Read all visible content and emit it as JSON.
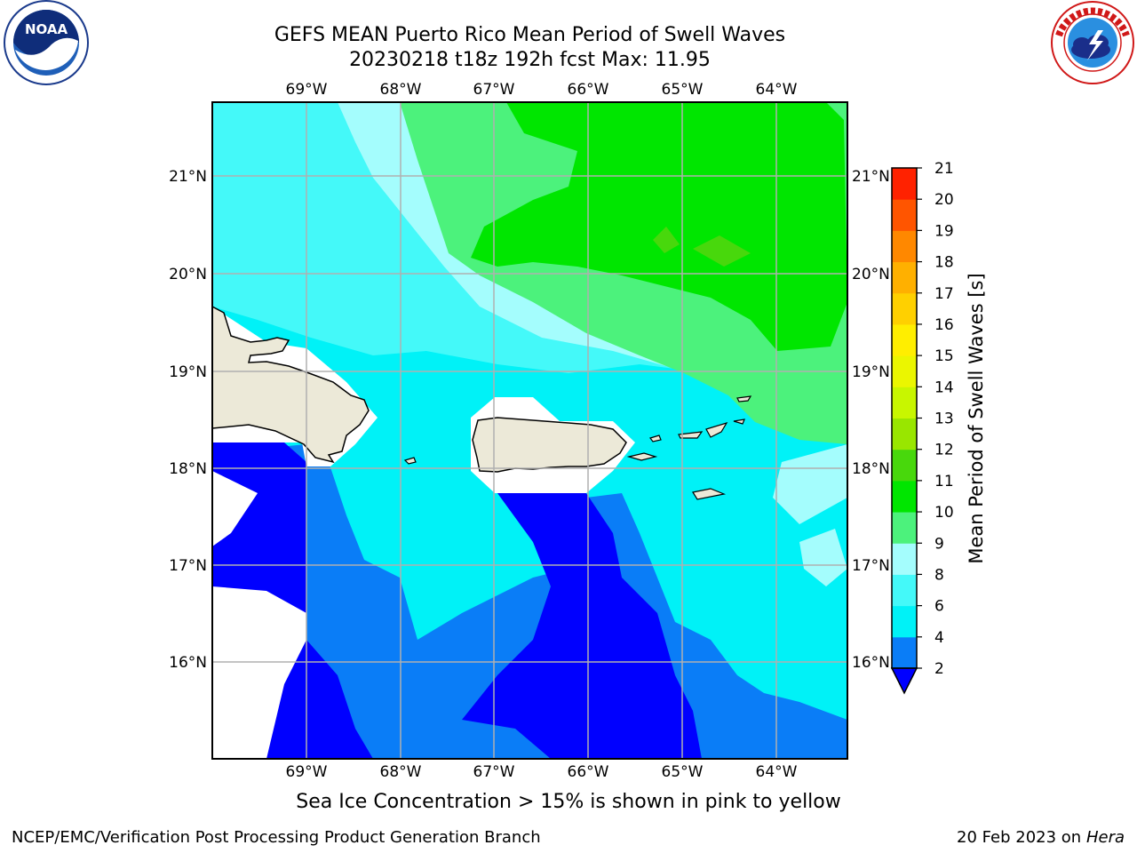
{
  "title": {
    "line1": "GEFS MEAN Puerto Rico Mean Period of Swell Waves",
    "line2": "20230218 t18z 192h fcst   Max: 11.95"
  },
  "logos": {
    "left": "noaa-logo",
    "right": "nws-logo"
  },
  "axes": {
    "lon_labels": [
      "69°W",
      "68°W",
      "67°W",
      "66°W",
      "65°W",
      "64°W"
    ],
    "lat_labels": [
      "21°N",
      "20°N",
      "19°N",
      "18°N",
      "17°N",
      "16°N"
    ]
  },
  "colorbar": {
    "label": "Mean Period of Swell Waves [s]",
    "ticks": [
      "2",
      "4",
      "6",
      "8",
      "9",
      "10",
      "11",
      "12",
      "13",
      "14",
      "15",
      "16",
      "17",
      "18",
      "19",
      "20",
      "21"
    ],
    "colors": [
      "#0a7df7",
      "#00f2f7",
      "#44f9f9",
      "#a4fdfd",
      "#4cf27c",
      "#00e600",
      "#48d80c",
      "#99e600",
      "#c8f600",
      "#ebf600",
      "#ffee00",
      "#ffd000",
      "#ffb000",
      "#ff8800",
      "#ff5500",
      "#ff2200"
    ],
    "extend_color": "#0000ff"
  },
  "subtitle": "Sea Ice Concentration > 15% is shown in pink to yellow",
  "footer": {
    "left": "NCEP/EMC/Verification Post Processing Product Generation Branch",
    "right_date": "20 Feb 2023 on",
    "right_machine": "Hera"
  }
}
